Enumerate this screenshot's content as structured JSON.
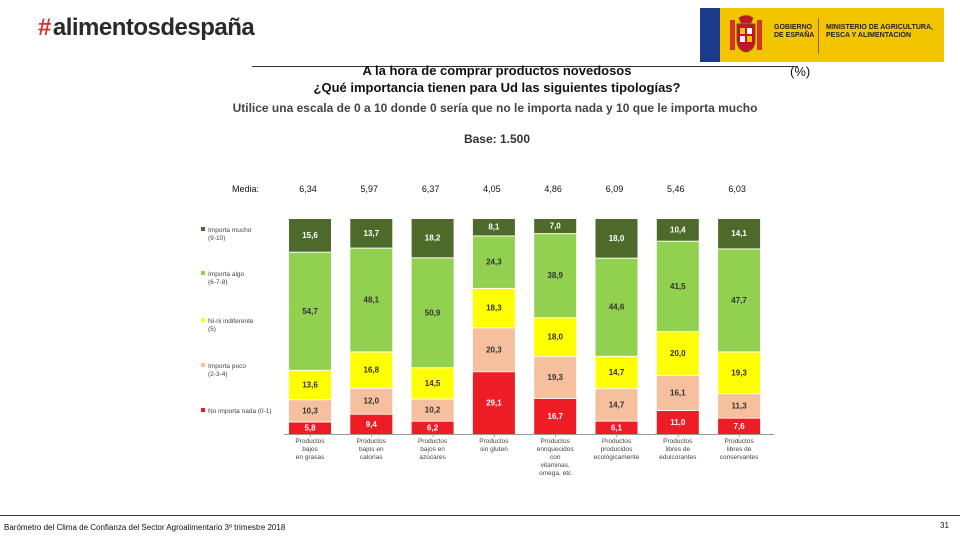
{
  "header": {
    "brand_hash": "#",
    "brand_name": "alimentosdespaña",
    "gov_left": "GOBIERNO DE ESPAÑA",
    "gov_right": "MINISTERIO DE AGRICULTURA, PESCA Y ALIMENTACIÓN"
  },
  "titles": {
    "line1": "A la hora de comprar productos novedosos",
    "line2": "¿Qué importancia tienen para Ud las siguientes tipologías?",
    "unit": "(%)",
    "subtitle": "Utilice una escala de 0 a 10 donde 0 sería que no le importa nada y 10 que le importa mucho",
    "base": "Base: 1.500"
  },
  "footer": {
    "text": "Barómetro del Clima de Confianza del Sector Agroalimentario 3º trimestre 2018",
    "page": "31"
  },
  "colors": {
    "importa_mucho": "#4e6a2a",
    "importa_algo": "#92d050",
    "ni_ni": "#ffff00",
    "importa_poco": "#f6bf9d",
    "no_importa": "#ee1c25"
  },
  "chart_data": {
    "type": "bar",
    "stacked": true,
    "normalized_to": 100,
    "media_label": "Media:",
    "categories": [
      "Productos bajos en grasas",
      "Productos bajos en calorías",
      "Productos bajos en azúcares",
      "Productos sin gluten",
      "Productos enriquecidos con vitaminas, omega, etc",
      "Productos producidos ecológicamente",
      "Productos libres de edulcorantes",
      "Productos libres de conservantes"
    ],
    "category_lines": [
      [
        "Productos",
        "bajos",
        "en grasas"
      ],
      [
        "Productos",
        "bajos en",
        "calorías"
      ],
      [
        "Productos",
        "bajos en",
        "azúcares"
      ],
      [
        "Productos",
        "sin gluten"
      ],
      [
        "Productos",
        "enriquecidos",
        "con",
        "vitaminas,",
        "omega, etc"
      ],
      [
        "Productos",
        "producidos",
        "ecológicamente"
      ],
      [
        "Productos",
        "libres de",
        "edulcorantes"
      ],
      [
        "Productos",
        "libres de",
        "conservantes"
      ]
    ],
    "media": [
      "6,34",
      "5,97",
      "6,37",
      "4,05",
      "4,86",
      "6,09",
      "5,46",
      "6,03"
    ],
    "series": [
      {
        "name": "No importa nada (0-1)",
        "legend_lines": [
          "No importa nada (0-1)"
        ],
        "color": "#ee1c25",
        "labels": [
          "5,8",
          "9,4",
          "6,2",
          "29,1",
          "16,7",
          "6,1",
          "11,0",
          "7,6"
        ]
      },
      {
        "name": "Importa poco (2-3-4)",
        "legend_lines": [
          "Importa poco",
          "(2-3-4)"
        ],
        "color": "#f6bf9d",
        "labels": [
          "10,3",
          "12,0",
          "10,2",
          "20,3",
          "19,3",
          "14,7",
          "16,1",
          "11,3"
        ]
      },
      {
        "name": "Ni-ni indiferente (5)",
        "legend_lines": [
          "Ni-ni indiferente",
          "(5)"
        ],
        "color": "#ffff00",
        "labels": [
          "13,6",
          "16,8",
          "14,5",
          "18,3",
          "18,0",
          "14,7",
          "20,0",
          "19,3"
        ]
      },
      {
        "name": "Importa algo (6-7-8)",
        "legend_lines": [
          "Importa algo",
          "(6-7-8)"
        ],
        "color": "#92d050",
        "labels": [
          "54,7",
          "48,1",
          "50,9",
          "24,3",
          "38,9",
          "44,6",
          "41,5",
          "47,7"
        ]
      },
      {
        "name": "Importa mucho (9-10)",
        "legend_lines": [
          "Importa mucho",
          "(9-10)"
        ],
        "color": "#4e6a2a",
        "labels": [
          "15,6",
          "13,7",
          "18,2",
          "8,1",
          "7,0",
          "18,0",
          "10,4",
          "14,1"
        ]
      }
    ]
  }
}
